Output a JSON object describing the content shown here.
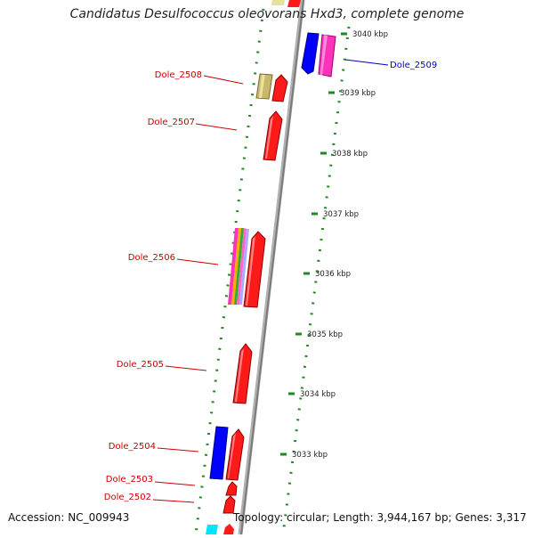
{
  "header": {
    "title": "Candidatus Desulfococcus oleovorans Hxd3, complete genome"
  },
  "footer": {
    "accession": "Accession: NC_009943",
    "summary": "Topology: circular; Length: 3,944,167 bp; Genes: 3,317"
  },
  "colors": {
    "backbone": "#909090",
    "tick": "#1f8a1f",
    "forward_gene": "#ff1a1a",
    "label_red": "#cc0000",
    "label_blue": "#0000cc"
  },
  "scale_ticks": [
    {
      "label": "3040 kbp"
    },
    {
      "label": "3039 kbp"
    },
    {
      "label": "3038 kbp"
    },
    {
      "label": "3037 kbp"
    },
    {
      "label": "3036 kbp"
    },
    {
      "label": "3035 kbp"
    },
    {
      "label": "3034 kbp"
    },
    {
      "label": "3033 kbp"
    }
  ],
  "gene_labels": [
    {
      "name": "Dole_2509",
      "color": "#0000cc"
    },
    {
      "name": "Dole_2508",
      "color": "#cc0000"
    },
    {
      "name": "Dole_2507",
      "color": "#cc0000"
    },
    {
      "name": "Dole_2506",
      "color": "#cc0000"
    },
    {
      "name": "Dole_2505",
      "color": "#cc0000"
    },
    {
      "name": "Dole_2504",
      "color": "#cc0000"
    },
    {
      "name": "Dole_2503",
      "color": "#cc0000"
    },
    {
      "name": "Dole_2502",
      "color": "#cc0000"
    }
  ]
}
